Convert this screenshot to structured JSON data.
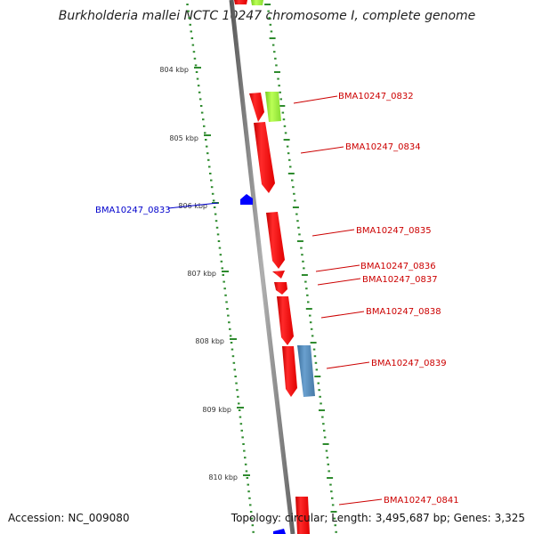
{
  "title": "Burkholderia mallei NCTC 10247 chromosome I, complete genome",
  "footer": {
    "accession_label": "Accession:",
    "accession": "NC_009080",
    "topology_label": "Topology:",
    "topology": "circular",
    "length_label": "Length:",
    "length": "3,495,687 bp",
    "genes_label": "Genes:",
    "genes": "3,325"
  },
  "colors": {
    "backbone": "#7f7f7f",
    "tick": "#2e8b2e",
    "forward_gene": "#ff0000",
    "reverse_gene": "#0000ff",
    "forward_label": "#cc0000",
    "reverse_label": "#0000cc",
    "lime_feature": "#99ee33",
    "steel_feature": "#4f86b8"
  },
  "scale_ticks": [
    "804 kbp",
    "805 kbp",
    "806 kbp",
    "807 kbp",
    "808 kbp",
    "809 kbp",
    "810 kbp"
  ],
  "gene_labels": [
    {
      "id": "BMA10247_0832",
      "strand": "forward"
    },
    {
      "id": "BMA10247_0834",
      "strand": "forward"
    },
    {
      "id": "BMA10247_0833",
      "strand": "reverse"
    },
    {
      "id": "BMA10247_0835",
      "strand": "forward"
    },
    {
      "id": "BMA10247_0836",
      "strand": "forward"
    },
    {
      "id": "BMA10247_0837",
      "strand": "forward"
    },
    {
      "id": "BMA10247_0838",
      "strand": "forward"
    },
    {
      "id": "BMA10247_0839",
      "strand": "forward"
    },
    {
      "id": "BMA10247_0841",
      "strand": "forward"
    }
  ]
}
